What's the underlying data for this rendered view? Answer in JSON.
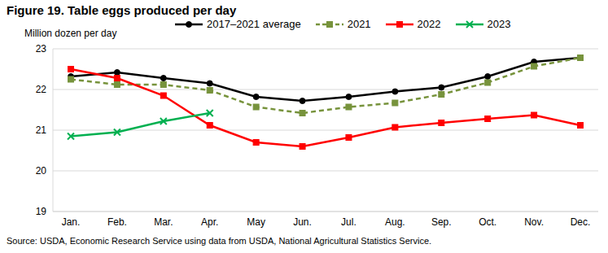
{
  "chart_data": {
    "type": "line",
    "title": "Figure 19. Table eggs produced per day",
    "y_label": "Million dozen per day",
    "source": "Source: USDA, Economic Research Service using data from USDA, National Agricultural Statistics Service.",
    "categories": [
      "Jan.",
      "Feb.",
      "Mar.",
      "Apr.",
      "May",
      "Jun.",
      "Jul.",
      "Aug.",
      "Sep.",
      "Oct.",
      "Nov.",
      "Dec."
    ],
    "series": [
      {
        "name": "2017–2021 average",
        "color": "#000000",
        "marker": "circle",
        "line_style": "solid",
        "values": [
          22.32,
          22.42,
          22.28,
          22.15,
          21.82,
          21.72,
          21.82,
          21.95,
          22.05,
          22.32,
          22.68,
          22.78
        ]
      },
      {
        "name": "2021",
        "color": "#77933c",
        "marker": "square",
        "line_style": "dashed",
        "values": [
          22.25,
          22.12,
          22.12,
          21.98,
          21.57,
          21.42,
          21.57,
          21.67,
          21.88,
          22.17,
          22.57,
          22.78
        ]
      },
      {
        "name": "2022",
        "color": "#ff0000",
        "marker": "square",
        "line_style": "solid",
        "values": [
          22.5,
          22.28,
          21.85,
          21.12,
          20.7,
          20.6,
          20.82,
          21.07,
          21.18,
          21.28,
          21.37,
          21.12
        ]
      },
      {
        "name": "2023",
        "color": "#00b050",
        "marker": "x",
        "line_style": "solid",
        "values": [
          20.85,
          20.95,
          21.22,
          21.42,
          null,
          null,
          null,
          null,
          null,
          null,
          null,
          null
        ]
      }
    ],
    "ylim": [
      19,
      23
    ],
    "yticks": [
      19,
      20,
      21,
      22,
      23
    ],
    "grid": true,
    "legend": "top"
  }
}
